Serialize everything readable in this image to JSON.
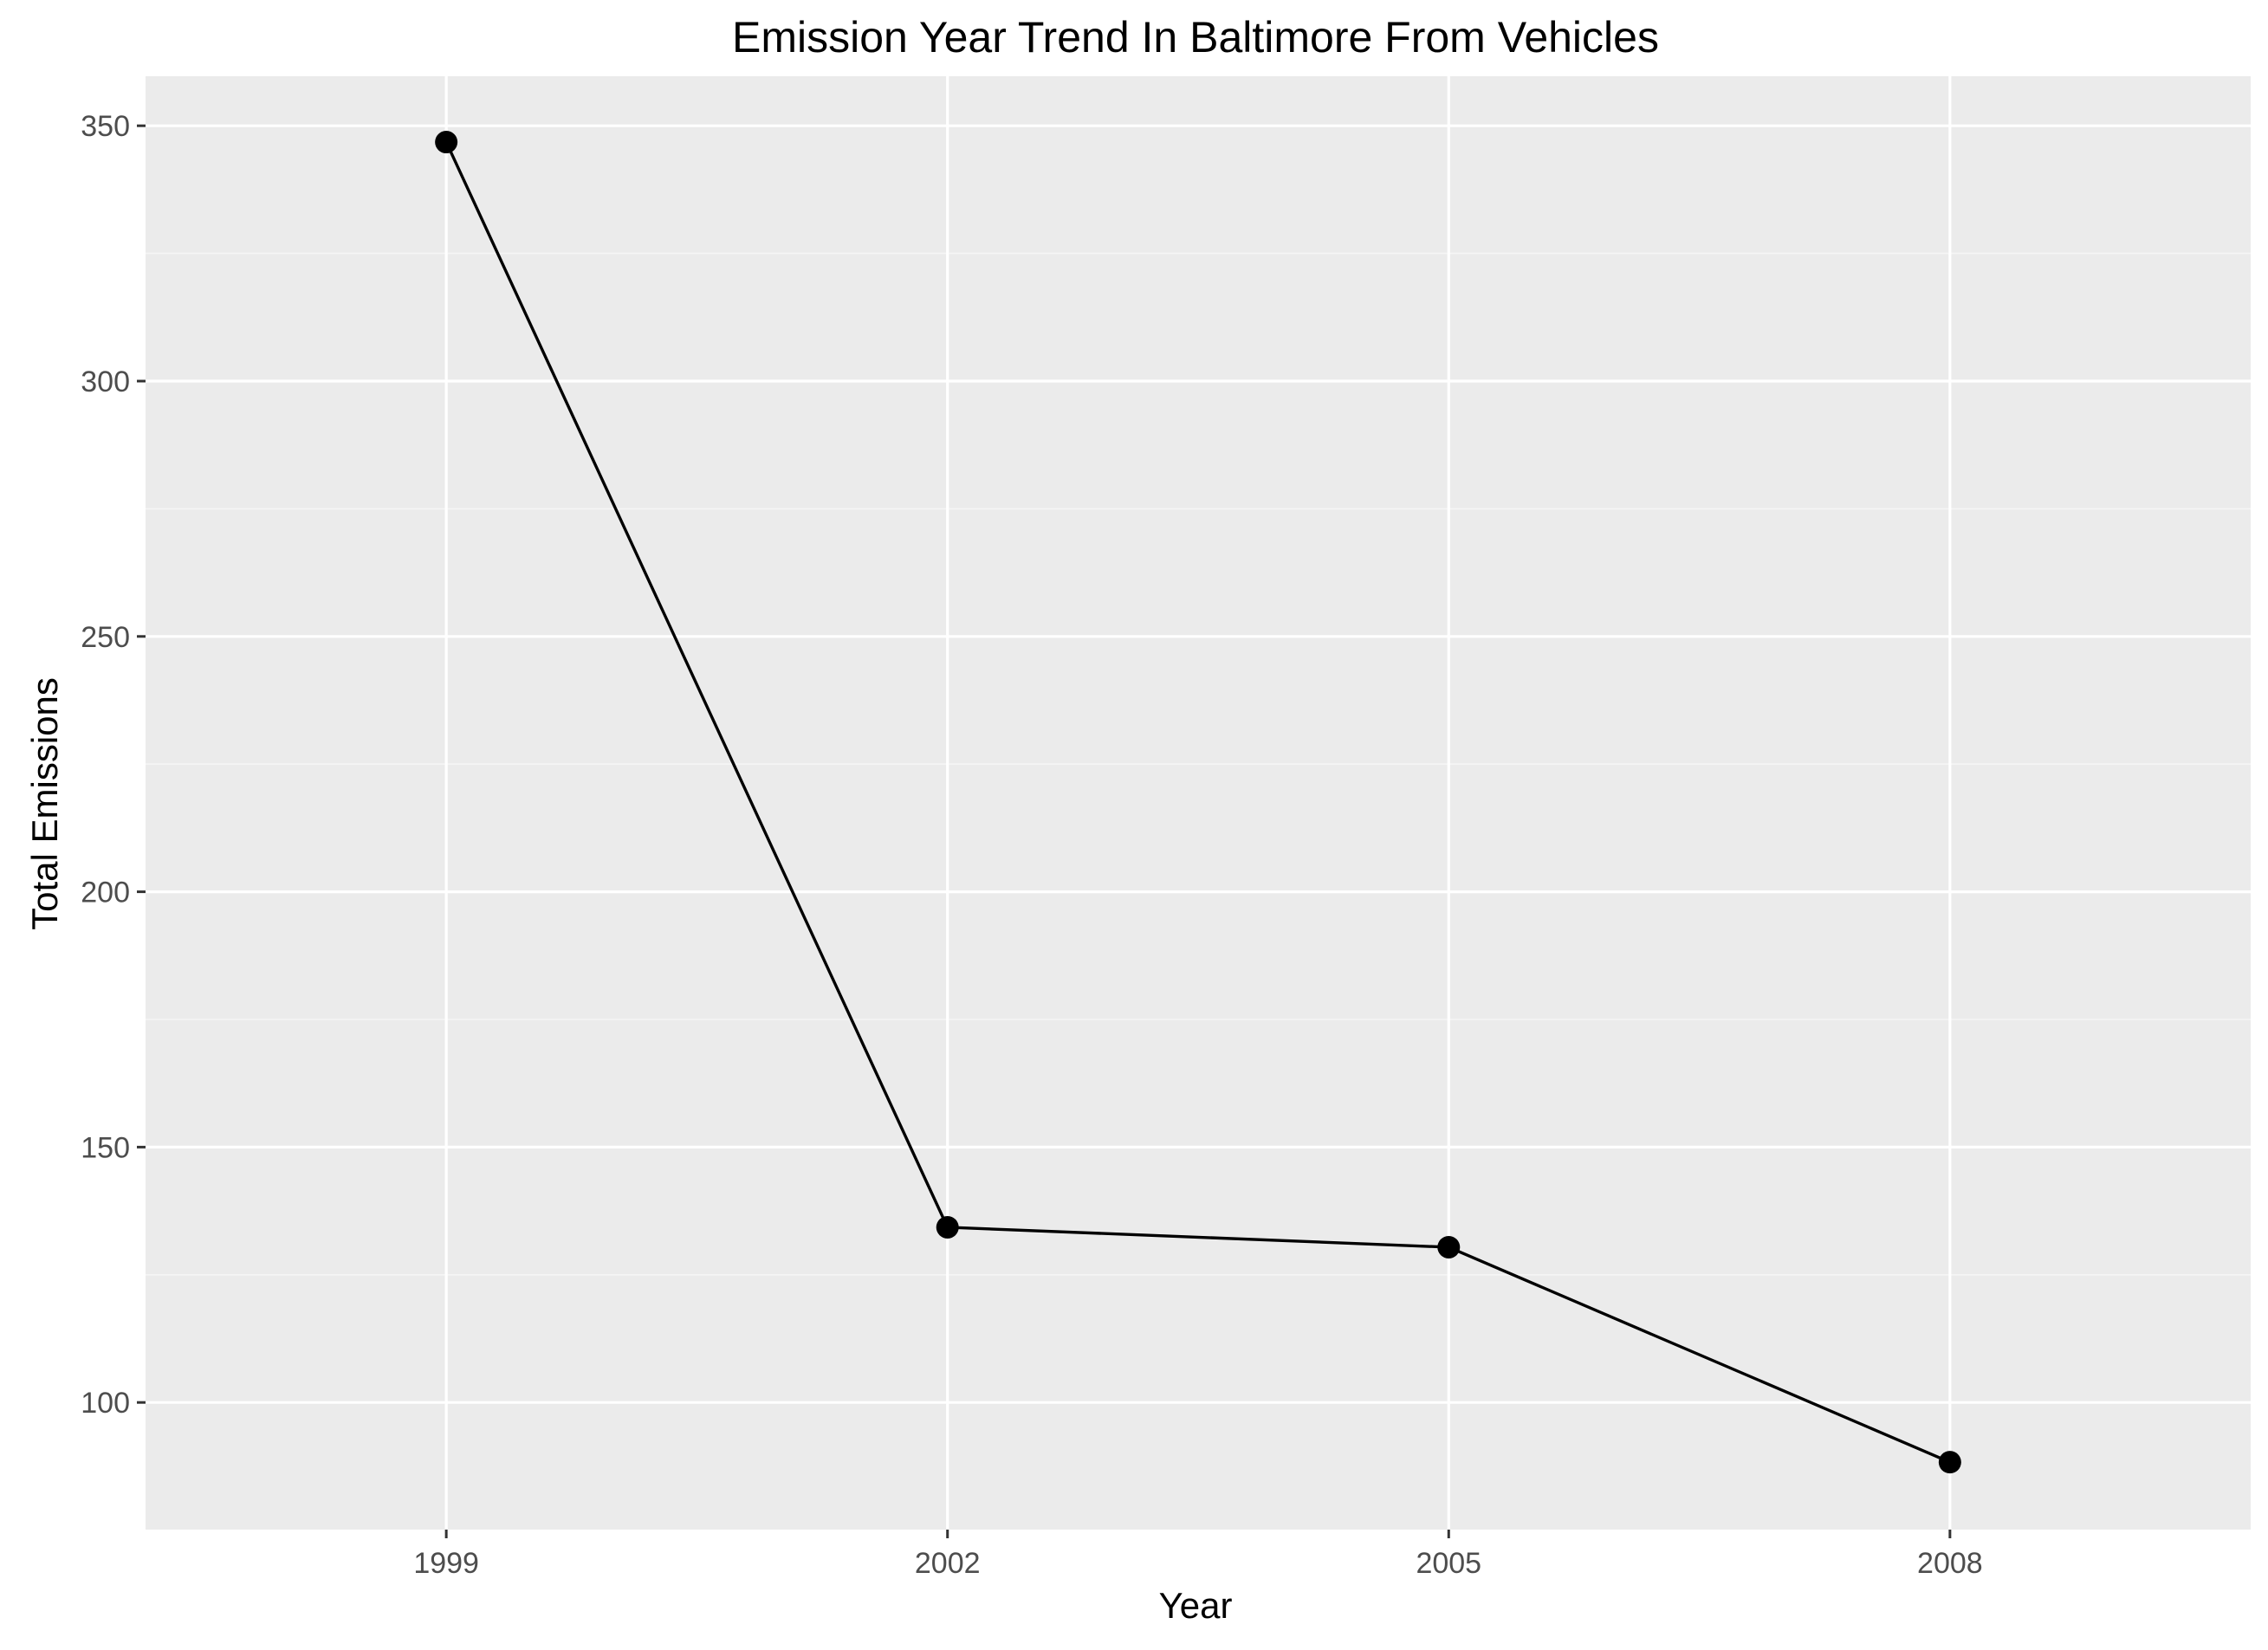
{
  "chart_data": {
    "type": "line",
    "title": "Emission Year Trend In Baltimore From Vehicles",
    "xlabel": "Year",
    "ylabel": "Total Emissions",
    "x": [
      1999,
      2002,
      2005,
      2008
    ],
    "x_tick_labels": [
      "1999",
      "2002",
      "2005",
      "2008"
    ],
    "xlim": [
      1997.2,
      2009.8
    ],
    "y_ticks": [
      100,
      150,
      200,
      250,
      300,
      350
    ],
    "y_tick_labels": [
      "100",
      "150",
      "200",
      "250",
      "300",
      "350"
    ],
    "ylim": [
      75.1,
      359.7
    ],
    "series": [
      {
        "values": [
          346.8,
          134.3,
          130.4,
          88.3
        ]
      }
    ],
    "grid": true,
    "markers": "filled-circle",
    "colors": {
      "panel_background": "#ebebeb",
      "grid_major": "#ffffff",
      "grid_minor": "#f5f5f5",
      "line": "#000000",
      "point": "#000000",
      "tick_mark": "#333333"
    }
  }
}
